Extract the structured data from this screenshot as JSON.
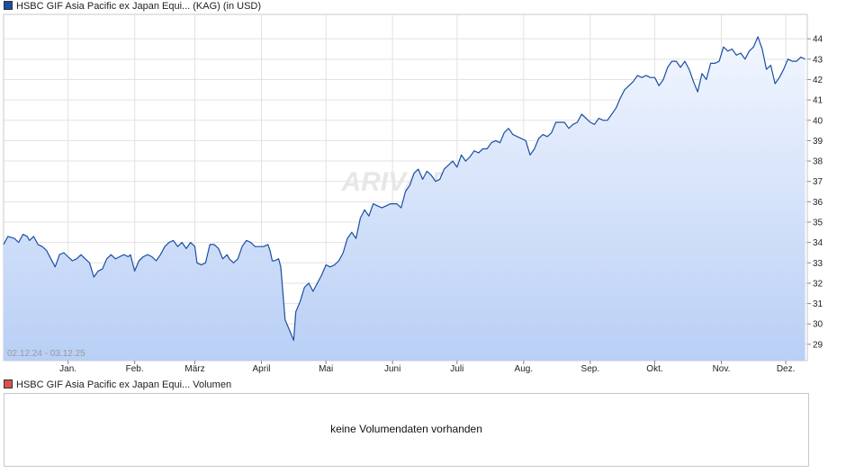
{
  "legend": {
    "price_label": "HSBC GIF Asia Pacific ex Japan Equi... (KAG) (in USD)",
    "price_color": "#1a4fa3",
    "volume_label": "HSBC GIF Asia Pacific ex Japan Equi... Volumen",
    "volume_color": "#d9534f"
  },
  "volume_panel": {
    "message": "keine Volumendaten vorhanden"
  },
  "date_range": "02.12.24 - 03.12.25",
  "watermark": "ARIVA.DE",
  "colors": {
    "line": "#1a4fa3",
    "fill_top": "#f2f6ff",
    "fill_bottom": "#b9cff5",
    "grid": "#e2e2e2"
  },
  "chart_data": {
    "type": "area",
    "ylim": [
      28.2,
      45.2
    ],
    "y_ticks": [
      "29",
      "30",
      "31",
      "32",
      "33",
      "34",
      "35",
      "36",
      "37",
      "38",
      "39",
      "40",
      "41",
      "42",
      "43",
      "44"
    ],
    "x_ticks": [
      "Jan.",
      "Feb.",
      "März",
      "April",
      "Mai",
      "Juni",
      "Juli",
      "Aug.",
      "Sep.",
      "Okt.",
      "Nov.",
      "Dez."
    ],
    "grid": true,
    "series": [
      {
        "values": [
          [
            0,
            33.9
          ],
          [
            2,
            34.3
          ],
          [
            5,
            34.2
          ],
          [
            7,
            34.0
          ],
          [
            9,
            34.4
          ],
          [
            11,
            34.3
          ],
          [
            12,
            34.1
          ],
          [
            14,
            34.3
          ],
          [
            16,
            33.9
          ],
          [
            18,
            33.8
          ],
          [
            20,
            33.6
          ],
          [
            22,
            33.2
          ],
          [
            24,
            32.8
          ],
          [
            26,
            33.4
          ],
          [
            28,
            33.5
          ],
          [
            30,
            33.3
          ],
          [
            32,
            33.1
          ],
          [
            34,
            33.2
          ],
          [
            36,
            33.4
          ],
          [
            38,
            33.2
          ],
          [
            40,
            33.0
          ],
          [
            42,
            32.3
          ],
          [
            44,
            32.6
          ],
          [
            46,
            32.7
          ],
          [
            48,
            33.2
          ],
          [
            50,
            33.4
          ],
          [
            52,
            33.2
          ],
          [
            54,
            33.3
          ],
          [
            56,
            33.4
          ],
          [
            58,
            33.3
          ],
          [
            59,
            33.4
          ],
          [
            61,
            32.6
          ],
          [
            63,
            33.1
          ],
          [
            65,
            33.3
          ],
          [
            67,
            33.4
          ],
          [
            69,
            33.3
          ],
          [
            71,
            33.1
          ],
          [
            73,
            33.4
          ],
          [
            75,
            33.8
          ],
          [
            77,
            34.0
          ],
          [
            79,
            34.1
          ],
          [
            81,
            33.8
          ],
          [
            83,
            34.0
          ],
          [
            85,
            33.7
          ],
          [
            87,
            34.0
          ],
          [
            89,
            33.8
          ],
          [
            90,
            33.0
          ],
          [
            92,
            32.9
          ],
          [
            94,
            33.0
          ],
          [
            96,
            33.9
          ],
          [
            98,
            33.9
          ],
          [
            100,
            33.7
          ],
          [
            102,
            33.2
          ],
          [
            104,
            33.4
          ],
          [
            105,
            33.2
          ],
          [
            107,
            33.0
          ],
          [
            109,
            33.2
          ],
          [
            111,
            33.8
          ],
          [
            113,
            34.1
          ],
          [
            115,
            34.0
          ],
          [
            117,
            33.8
          ],
          [
            119,
            33.8
          ],
          [
            121,
            33.8
          ],
          [
            123,
            33.9
          ],
          [
            124,
            33.6
          ],
          [
            125,
            33.1
          ],
          [
            126,
            33.1
          ],
          [
            128,
            33.2
          ],
          [
            129,
            32.8
          ],
          [
            131,
            30.2
          ],
          [
            133,
            29.7
          ],
          [
            135,
            29.2
          ],
          [
            136,
            30.6
          ],
          [
            138,
            31.1
          ],
          [
            140,
            31.8
          ],
          [
            142,
            32.0
          ],
          [
            144,
            31.6
          ],
          [
            146,
            32.0
          ],
          [
            148,
            32.4
          ],
          [
            150,
            32.9
          ],
          [
            152,
            32.8
          ],
          [
            154,
            32.9
          ],
          [
            156,
            33.1
          ],
          [
            158,
            33.5
          ],
          [
            160,
            34.2
          ],
          [
            162,
            34.5
          ],
          [
            164,
            34.2
          ],
          [
            166,
            35.2
          ],
          [
            168,
            35.6
          ],
          [
            170,
            35.3
          ],
          [
            172,
            35.9
          ],
          [
            174,
            35.8
          ],
          [
            176,
            35.7
          ],
          [
            178,
            35.8
          ],
          [
            180,
            35.9
          ],
          [
            183,
            35.9
          ],
          [
            185,
            35.7
          ],
          [
            187,
            36.5
          ],
          [
            189,
            36.8
          ],
          [
            191,
            37.4
          ],
          [
            193,
            37.6
          ],
          [
            195,
            37.1
          ],
          [
            197,
            37.5
          ],
          [
            199,
            37.3
          ],
          [
            201,
            37.0
          ],
          [
            203,
            37.1
          ],
          [
            205,
            37.6
          ],
          [
            207,
            37.8
          ],
          [
            209,
            38.0
          ],
          [
            211,
            37.7
          ],
          [
            213,
            38.3
          ],
          [
            215,
            38.0
          ],
          [
            217,
            38.2
          ],
          [
            219,
            38.5
          ],
          [
            221,
            38.4
          ],
          [
            223,
            38.6
          ],
          [
            225,
            38.6
          ],
          [
            227,
            38.9
          ],
          [
            229,
            39.0
          ],
          [
            231,
            38.9
          ],
          [
            233,
            39.4
          ],
          [
            235,
            39.6
          ],
          [
            237,
            39.3
          ],
          [
            239,
            39.2
          ],
          [
            241,
            39.1
          ],
          [
            243,
            39.0
          ],
          [
            245,
            38.3
          ],
          [
            247,
            38.6
          ],
          [
            249,
            39.1
          ],
          [
            251,
            39.3
          ],
          [
            253,
            39.2
          ],
          [
            255,
            39.4
          ],
          [
            257,
            39.9
          ],
          [
            259,
            39.9
          ],
          [
            261,
            39.9
          ],
          [
            263,
            39.6
          ],
          [
            265,
            39.8
          ],
          [
            267,
            39.9
          ],
          [
            269,
            40.3
          ],
          [
            271,
            40.1
          ],
          [
            273,
            39.9
          ],
          [
            275,
            39.8
          ],
          [
            277,
            40.1
          ],
          [
            279,
            40.0
          ],
          [
            281,
            40.0
          ],
          [
            283,
            40.3
          ],
          [
            285,
            40.6
          ],
          [
            287,
            41.1
          ],
          [
            289,
            41.5
          ],
          [
            291,
            41.7
          ],
          [
            293,
            41.9
          ],
          [
            295,
            42.2
          ],
          [
            297,
            42.1
          ],
          [
            299,
            42.2
          ],
          [
            301,
            42.1
          ],
          [
            303,
            42.1
          ],
          [
            305,
            41.7
          ],
          [
            307,
            42.0
          ],
          [
            309,
            42.6
          ],
          [
            311,
            42.9
          ],
          [
            313,
            42.9
          ],
          [
            315,
            42.6
          ],
          [
            317,
            42.9
          ],
          [
            319,
            42.5
          ],
          [
            321,
            41.9
          ],
          [
            323,
            41.4
          ],
          [
            325,
            42.3
          ],
          [
            327,
            42.0
          ],
          [
            329,
            42.8
          ],
          [
            331,
            42.8
          ],
          [
            333,
            42.9
          ],
          [
            335,
            43.6
          ],
          [
            337,
            43.4
          ],
          [
            339,
            43.5
          ],
          [
            341,
            43.2
          ],
          [
            343,
            43.3
          ],
          [
            345,
            43.0
          ],
          [
            347,
            43.4
          ],
          [
            349,
            43.6
          ],
          [
            351,
            44.1
          ],
          [
            353,
            43.5
          ],
          [
            355,
            42.5
          ],
          [
            357,
            42.7
          ],
          [
            359,
            41.8
          ],
          [
            361,
            42.1
          ],
          [
            363,
            42.5
          ],
          [
            365,
            43.0
          ],
          [
            367,
            42.9
          ],
          [
            369,
            42.9
          ],
          [
            371,
            43.1
          ],
          [
            373,
            43.0
          ]
        ]
      }
    ]
  }
}
